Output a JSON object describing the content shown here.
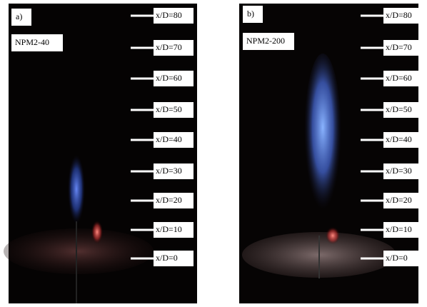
{
  "panels": [
    {
      "tag": "a)",
      "case": "NPM2-40",
      "markers": [
        "x/D=80",
        "x/D=70",
        "x/D=60",
        "x/D=50",
        "x/D=40",
        "x/D=30",
        "x/D=20",
        "x/D=10",
        "x/D=0"
      ]
    },
    {
      "tag": "b)",
      "case": "NPM2-200",
      "markers": [
        "x/D=80",
        "x/D=70",
        "x/D=60",
        "x/D=50",
        "x/D=40",
        "x/D=30",
        "x/D=20",
        "x/D=10",
        "x/D=0"
      ]
    }
  ]
}
